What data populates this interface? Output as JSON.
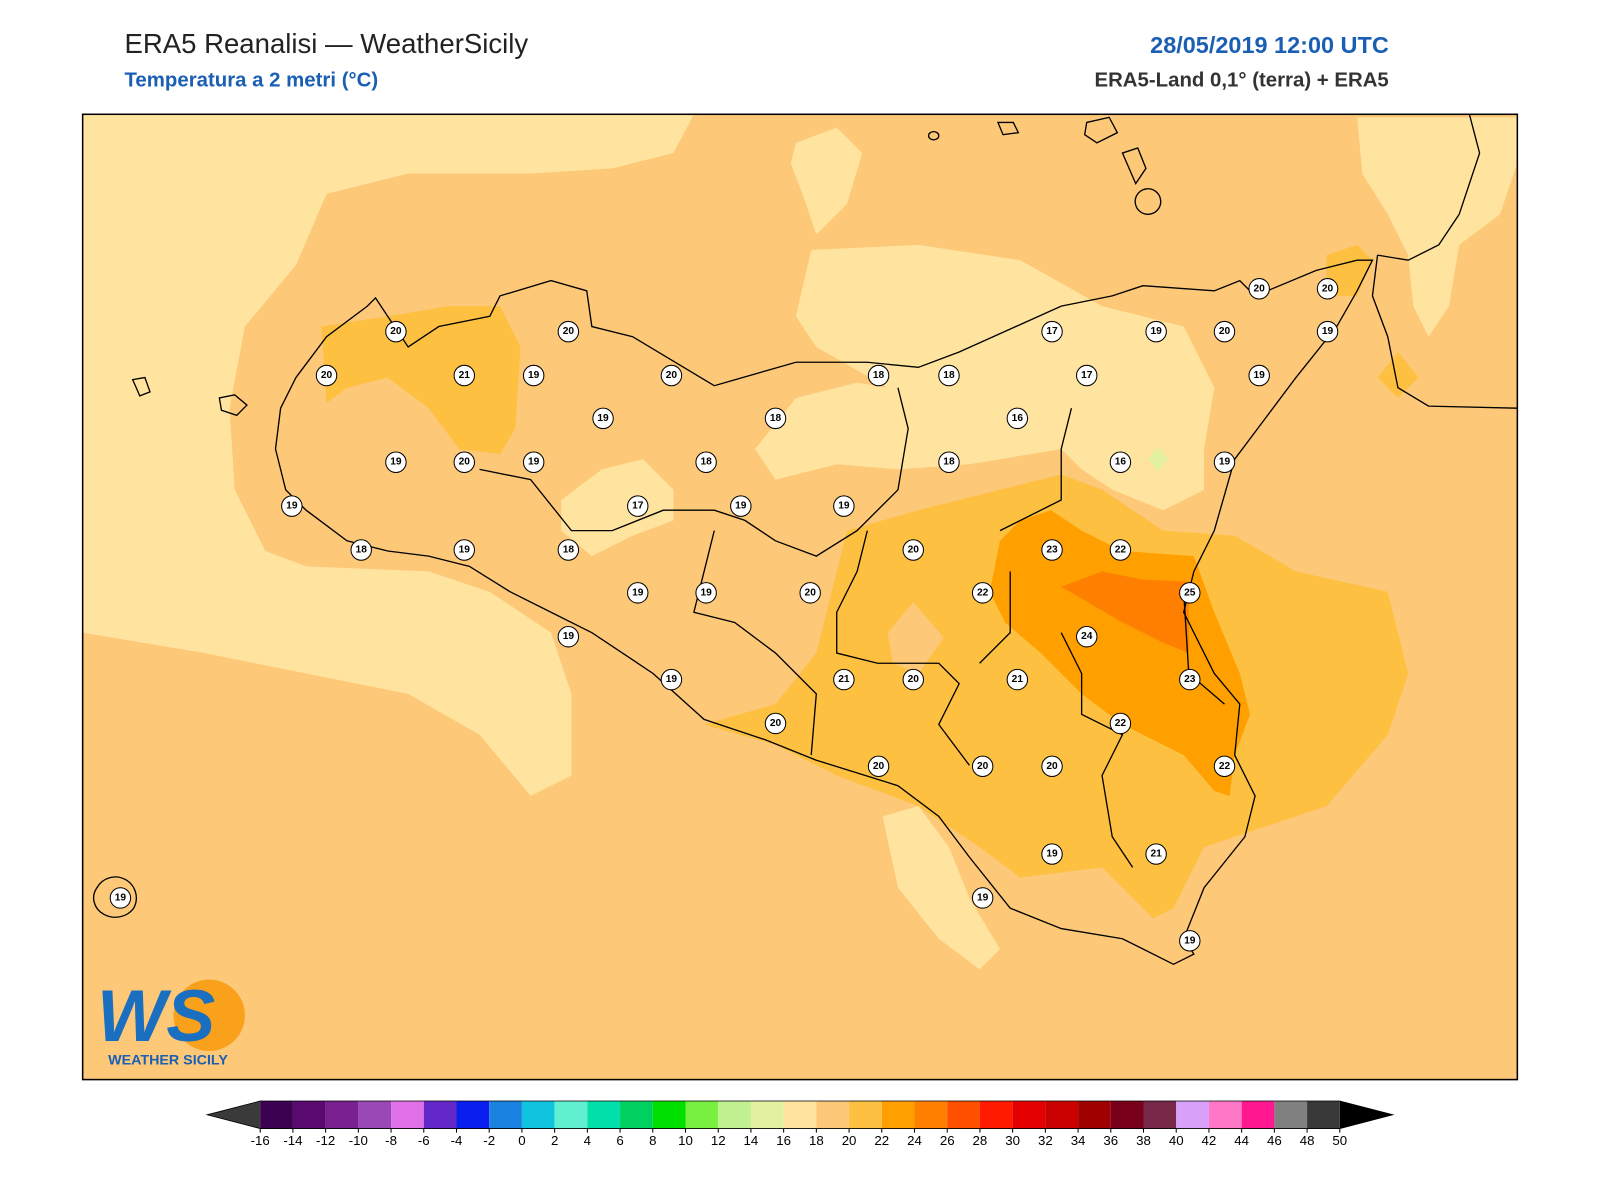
{
  "header": {
    "title": "ERA5 Reanalisi — WeatherSicily",
    "subtitle": "Temperatura a 2 metri (°C)",
    "date": "28/05/2019 12:00 UTC",
    "source": "ERA5-Land 0,1° (terra) + ERA5"
  },
  "map": {
    "stations": [
      20,
      20,
      20,
      21,
      19,
      20,
      19,
      18,
      18,
      18,
      17,
      19,
      20,
      20,
      20,
      19,
      17,
      19,
      16,
      19,
      20,
      19,
      18,
      18,
      16,
      19,
      19,
      17,
      19,
      19,
      18,
      19,
      18,
      20,
      23,
      22,
      19,
      19,
      20,
      22,
      25,
      19,
      24,
      19,
      21,
      20,
      21,
      23,
      20,
      22,
      20,
      20,
      20,
      22,
      19,
      21,
      19,
      19,
      19
    ]
  },
  "colorbar": {
    "ticks": [
      -16,
      -14,
      -12,
      -10,
      -8,
      -6,
      -4,
      -2,
      0,
      2,
      4,
      6,
      8,
      10,
      12,
      14,
      16,
      18,
      20,
      22,
      24,
      26,
      28,
      30,
      32,
      34,
      36,
      38,
      40,
      42,
      44,
      46,
      48,
      50
    ],
    "colors": [
      "#3c0050",
      "#5a0a6e",
      "#7a2090",
      "#9a48b4",
      "#e070e8",
      "#6428c8",
      "#0a1ef0",
      "#1a82e0",
      "#10c4e0",
      "#60f0d0",
      "#00e0a8",
      "#00d060",
      "#00e000",
      "#78f040",
      "#c0f090",
      "#e2f0a0",
      "#ffe4a0",
      "#fdc878",
      "#fdc040",
      "#ffa000",
      "#ff8000",
      "#ff5000",
      "#ff1a00",
      "#e40000",
      "#c80000",
      "#a00000",
      "#780018",
      "#782848",
      "#d8a0f8",
      "#ff78c8",
      "#ff1890",
      "#808080",
      "#383838"
    ],
    "under_color": "#3a3a3a",
    "over_color": "#000000"
  },
  "logo": {
    "mark": "WS",
    "text": "WEATHER SICILY"
  }
}
